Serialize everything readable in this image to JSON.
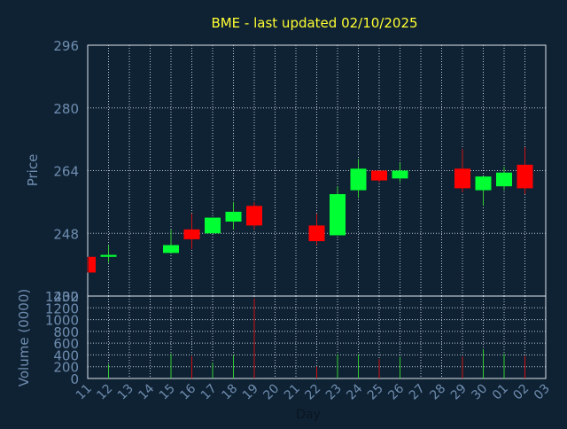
{
  "colors": {
    "background": "#0f2233",
    "title": "#ffff33",
    "axis_text": "#6f8db0",
    "grid": "#bcc8d4",
    "frame": "#dfe6ee",
    "up": "#00ff33",
    "down": "#ff0000",
    "wick_up": "#33cc33",
    "wick_down": "#cc1111",
    "xlabel": "#0b1520"
  },
  "chart_data": [
    {
      "type": "candlestick",
      "title": "BME - last updated 02/10/2025",
      "ylabel": "Price",
      "ylim": [
        232,
        296
      ],
      "yticks": [
        232,
        248,
        264,
        280,
        296
      ],
      "grid": true,
      "categories": [
        "11",
        "12",
        "13",
        "14",
        "15",
        "16",
        "17",
        "18",
        "19",
        "20",
        "21",
        "22",
        "23",
        "24",
        "25",
        "26",
        "27",
        "28",
        "29",
        "30",
        "01",
        "02",
        "03"
      ],
      "candles": [
        {
          "x": "11",
          "open": 242,
          "close": 238,
          "high": 242,
          "low": 238
        },
        {
          "x": "12",
          "open": 242,
          "close": 242.5,
          "high": 245,
          "low": 240.5
        },
        {
          "x": "15",
          "open": 243,
          "close": 245,
          "high": 249,
          "low": 243
        },
        {
          "x": "16",
          "open": 249,
          "close": 246.5,
          "high": 253,
          "low": 244
        },
        {
          "x": "17",
          "open": 248,
          "close": 252,
          "high": 252,
          "low": 248
        },
        {
          "x": "18",
          "open": 251,
          "close": 253.5,
          "high": 256,
          "low": 249
        },
        {
          "x": "19",
          "open": 255,
          "close": 250,
          "high": 256,
          "low": 249
        },
        {
          "x": "22",
          "open": 250,
          "close": 246,
          "high": 253,
          "low": 245
        },
        {
          "x": "23",
          "open": 247.5,
          "close": 258,
          "high": 260,
          "low": 247.5
        },
        {
          "x": "24",
          "open": 259,
          "close": 264.5,
          "high": 267,
          "low": 257
        },
        {
          "x": "25",
          "open": 264,
          "close": 261.5,
          "high": 264,
          "low": 261
        },
        {
          "x": "26",
          "open": 262,
          "close": 264,
          "high": 266,
          "low": 261
        },
        {
          "x": "29",
          "open": 264.5,
          "close": 259.5,
          "high": 269.5,
          "low": 258.5
        },
        {
          "x": "30",
          "open": 259,
          "close": 262.5,
          "high": 262.5,
          "low": 255
        },
        {
          "x": "01",
          "open": 260,
          "close": 263.5,
          "high": 265,
          "low": 259
        },
        {
          "x": "02",
          "open": 265.5,
          "close": 259.5,
          "high": 270,
          "low": 258
        }
      ]
    },
    {
      "type": "bar",
      "ylabel": "Volume (0000)",
      "xlabel": "Day",
      "ylim": [
        0,
        1400
      ],
      "yticks": [
        0,
        200,
        400,
        600,
        800,
        1000,
        1200,
        1400
      ],
      "grid": true,
      "categories": [
        "11",
        "12",
        "13",
        "14",
        "15",
        "16",
        "17",
        "18",
        "19",
        "20",
        "21",
        "22",
        "23",
        "24",
        "25",
        "26",
        "27",
        "28",
        "29",
        "30",
        "01",
        "02",
        "03"
      ],
      "bars": [
        {
          "x": "12",
          "value": 240,
          "direction": "up"
        },
        {
          "x": "15",
          "value": 420,
          "direction": "up"
        },
        {
          "x": "16",
          "value": 380,
          "direction": "down"
        },
        {
          "x": "17",
          "value": 270,
          "direction": "up"
        },
        {
          "x": "18",
          "value": 400,
          "direction": "up"
        },
        {
          "x": "19",
          "value": 1360,
          "direction": "down"
        },
        {
          "x": "22",
          "value": 200,
          "direction": "down"
        },
        {
          "x": "23",
          "value": 410,
          "direction": "up"
        },
        {
          "x": "24",
          "value": 410,
          "direction": "up"
        },
        {
          "x": "25",
          "value": 330,
          "direction": "down"
        },
        {
          "x": "26",
          "value": 370,
          "direction": "up"
        },
        {
          "x": "29",
          "value": 370,
          "direction": "down"
        },
        {
          "x": "30",
          "value": 500,
          "direction": "up"
        },
        {
          "x": "01",
          "value": 420,
          "direction": "up"
        },
        {
          "x": "02",
          "value": 380,
          "direction": "down"
        }
      ]
    }
  ]
}
